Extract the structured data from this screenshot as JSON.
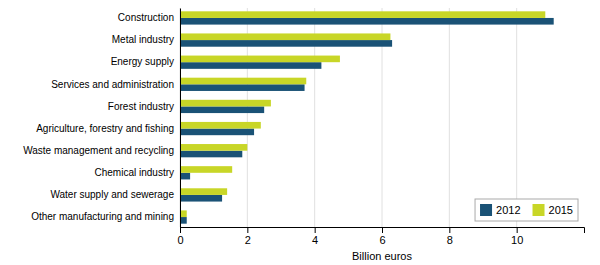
{
  "chart_data": {
    "type": "bar",
    "orientation": "horizontal",
    "categories": [
      "Other manufacturing and mining",
      "Water supply and sewerage",
      "Chemical industry",
      "Waste management and recycling",
      "Agriculture, forestry and fishing",
      "Forest industry",
      "Services and administration",
      "Energy supply",
      "Metal industry",
      "Construction"
    ],
    "series": [
      {
        "name": "2012",
        "color": "#1a5276",
        "values": [
          0.2,
          1.25,
          0.3,
          1.85,
          2.2,
          2.5,
          3.7,
          4.2,
          6.3,
          11.1
        ]
      },
      {
        "name": "2015",
        "color": "#c8d627",
        "values": [
          0.2,
          1.4,
          1.55,
          2.0,
          2.4,
          2.7,
          3.75,
          4.75,
          6.25,
          10.85
        ]
      }
    ],
    "xlabel": "Billion euros",
    "xlim": [
      0,
      12
    ],
    "xticks": [
      0,
      2,
      4,
      6,
      8,
      10
    ],
    "grid": true,
    "legend": "lower right"
  }
}
